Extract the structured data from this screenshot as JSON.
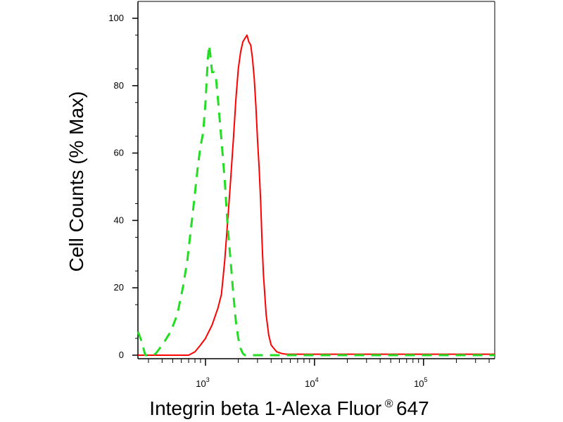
{
  "chart_data": {
    "type": "line",
    "title": "",
    "xlabel": {
      "prefix": "Integrin beta 1-Alexa Fluor",
      "superscript": "®",
      "suffix": " 647"
    },
    "ylabel": "Cell Counts (% Max)",
    "xscale": "log",
    "xlim": [
      240,
      450000
    ],
    "ylim": [
      0,
      100
    ],
    "yticks": [
      0,
      20,
      40,
      60,
      80,
      100
    ],
    "ytick_labels": [
      "0",
      "20",
      "40",
      "60",
      "80",
      "100"
    ],
    "xticks_major": [
      {
        "value": 1000,
        "base": "10",
        "exp": "3"
      },
      {
        "value": 10000,
        "base": "10",
        "exp": "4"
      },
      {
        "value": 100000,
        "base": "10",
        "exp": "5"
      }
    ],
    "grid": false,
    "legend": "none",
    "series": [
      {
        "color": "#ff0000",
        "style": "solid",
        "points": [
          [
            240,
            0
          ],
          [
            700,
            0
          ],
          [
            800,
            1
          ],
          [
            900,
            3
          ],
          [
            1000,
            5
          ],
          [
            1150,
            9
          ],
          [
            1300,
            14
          ],
          [
            1400,
            18
          ],
          [
            1500,
            28
          ],
          [
            1600,
            40
          ],
          [
            1700,
            52
          ],
          [
            1800,
            64
          ],
          [
            1900,
            76
          ],
          [
            2000,
            85
          ],
          [
            2100,
            90
          ],
          [
            2200,
            93
          ],
          [
            2300,
            94
          ],
          [
            2400,
            95
          ],
          [
            2500,
            93
          ],
          [
            2600,
            92
          ],
          [
            2700,
            88
          ],
          [
            2800,
            82
          ],
          [
            2900,
            74
          ],
          [
            3000,
            64
          ],
          [
            3100,
            56
          ],
          [
            3200,
            46
          ],
          [
            3300,
            34
          ],
          [
            3400,
            24
          ],
          [
            3600,
            12
          ],
          [
            3800,
            6
          ],
          [
            4000,
            3
          ],
          [
            4500,
            1
          ],
          [
            5000,
            0.5
          ],
          [
            5500,
            0.3
          ],
          [
            450000,
            0.3
          ]
        ]
      },
      {
        "color": "#22dd22",
        "style": "dashed",
        "points": [
          [
            240,
            7
          ],
          [
            260,
            4
          ],
          [
            280,
            0
          ],
          [
            330,
            0
          ],
          [
            350,
            0.5
          ],
          [
            380,
            2
          ],
          [
            420,
            4
          ],
          [
            480,
            7
          ],
          [
            550,
            12
          ],
          [
            620,
            20
          ],
          [
            680,
            28
          ],
          [
            750,
            40
          ],
          [
            800,
            48
          ],
          [
            850,
            56
          ],
          [
            900,
            62
          ],
          [
            950,
            66
          ],
          [
            1000,
            75
          ],
          [
            1050,
            88
          ],
          [
            1080,
            92
          ],
          [
            1100,
            90
          ],
          [
            1150,
            84
          ],
          [
            1200,
            84
          ],
          [
            1250,
            82
          ],
          [
            1300,
            76
          ],
          [
            1400,
            64
          ],
          [
            1500,
            52
          ],
          [
            1600,
            38
          ],
          [
            1700,
            28
          ],
          [
            1800,
            18
          ],
          [
            1900,
            10
          ],
          [
            2000,
            5
          ],
          [
            2100,
            2
          ],
          [
            2200,
            0.5
          ],
          [
            2300,
            0
          ],
          [
            4000,
            0
          ],
          [
            450000,
            0
          ]
        ]
      }
    ]
  }
}
